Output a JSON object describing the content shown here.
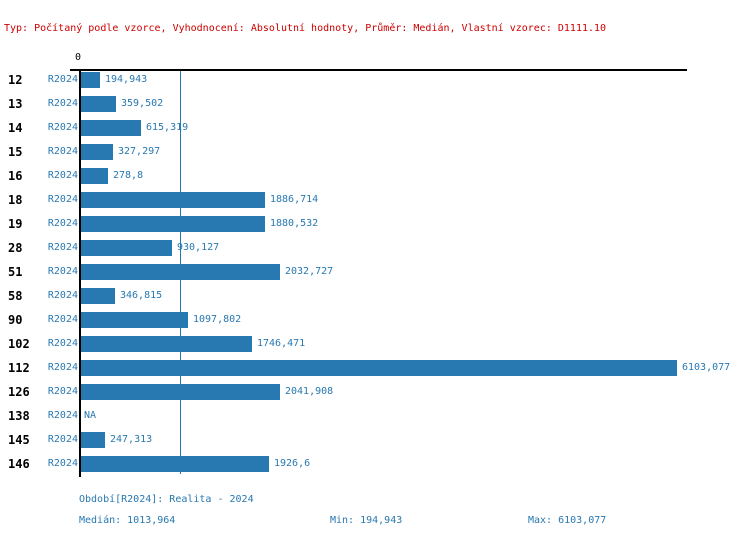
{
  "header": {
    "summary": "Typ: Počítaný podle vzorce, Vyhodnocení: Absolutní hodnoty, Průměr: Medián, Vlastní vzorec: D1111.10"
  },
  "chart_data": {
    "type": "bar",
    "orientation": "horizontal",
    "title": "",
    "xlabel": "",
    "ylabel": "",
    "x_origin_tick_label": "0",
    "axis_range": [
      0,
      6103.077
    ],
    "median_reference_line": 1013.964,
    "period_label": "R2024",
    "grid": false,
    "legend": "none",
    "categories": [
      "12",
      "13",
      "14",
      "15",
      "16",
      "18",
      "19",
      "28",
      "51",
      "58",
      "90",
      "102",
      "112",
      "126",
      "138",
      "145",
      "146"
    ],
    "values": [
      194.943,
      359.502,
      615.319,
      327.297,
      278.8,
      1886.714,
      1880.532,
      930.127,
      2032.727,
      346.815,
      1097.802,
      1746.471,
      6103.077,
      2041.908,
      null,
      247.313,
      1926.6
    ],
    "value_labels": [
      "194,943",
      "359,502",
      "615,319",
      "327,297",
      "278,8",
      "1886,714",
      "1880,532",
      "930,127",
      "2032,727",
      "346,815",
      "1097,802",
      "1746,471",
      "6103,077",
      "2041,908",
      "NA",
      "247,313",
      "1926,6"
    ]
  },
  "footer": {
    "period": "Období[R2024]: Realita - 2024",
    "median": "Medián: 1013,964",
    "min": "Min: 194,943",
    "max": "Max: 6103,077"
  },
  "colors": {
    "bar": "#2878b1",
    "label_blue": "#2878b1",
    "header_red": "#cc0000",
    "axis_black": "#000000"
  }
}
